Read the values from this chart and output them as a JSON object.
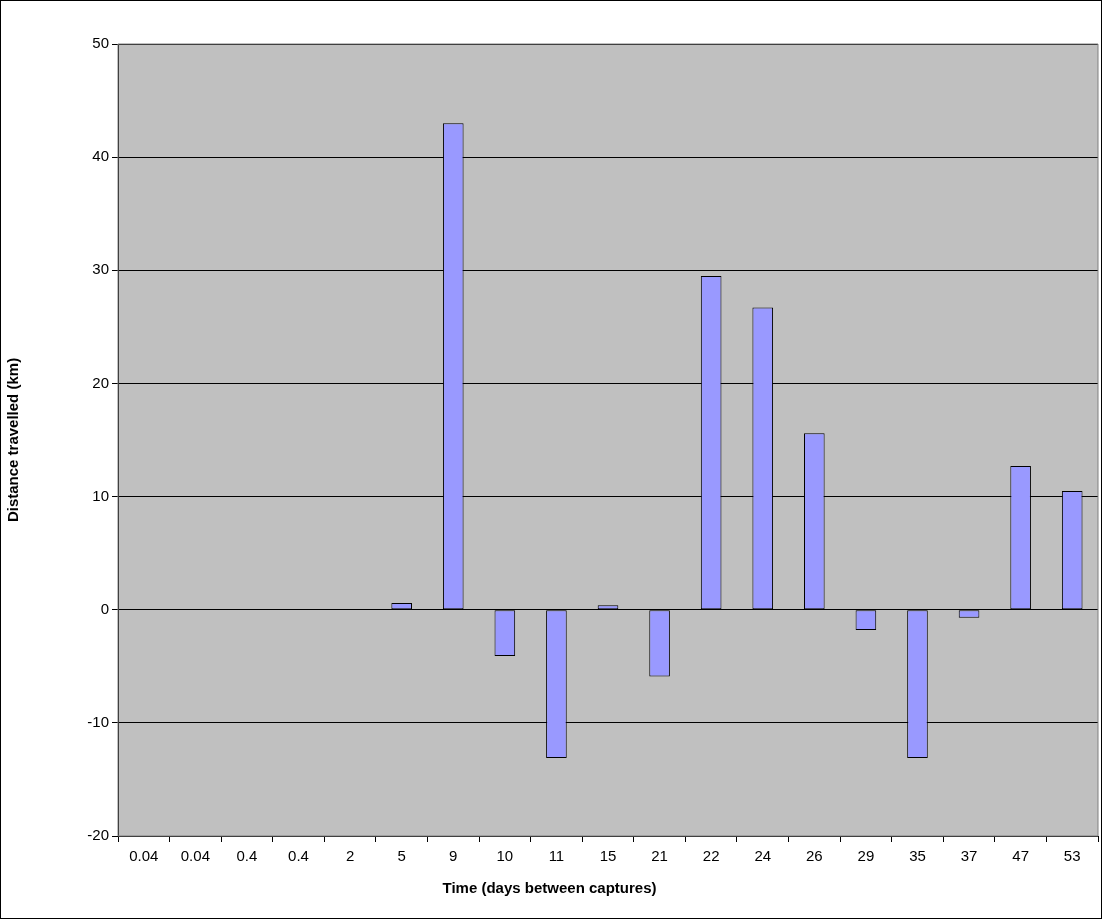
{
  "chart_data": {
    "type": "bar",
    "categories": [
      "0.04",
      "0.04",
      "0.4",
      "0.4",
      "2",
      "5",
      "9",
      "10",
      "11",
      "15",
      "21",
      "22",
      "24",
      "26",
      "29",
      "35",
      "37",
      "47",
      "53"
    ],
    "values": [
      0,
      0,
      0,
      0,
      0,
      0.6,
      43.0,
      -4.1,
      -13.1,
      0.4,
      -5.9,
      29.5,
      26.7,
      15.6,
      -1.8,
      -13.1,
      -0.7,
      12.7,
      10.5
    ],
    "color": "#9999ff",
    "xlabel": "Time (days between captures)",
    "ylabel": "Distance travelled (km)",
    "ylim": [
      -20,
      50
    ],
    "yticks": [
      -20,
      -10,
      0,
      10,
      20,
      30,
      40,
      50
    ],
    "grid": "y",
    "legend": false
  }
}
